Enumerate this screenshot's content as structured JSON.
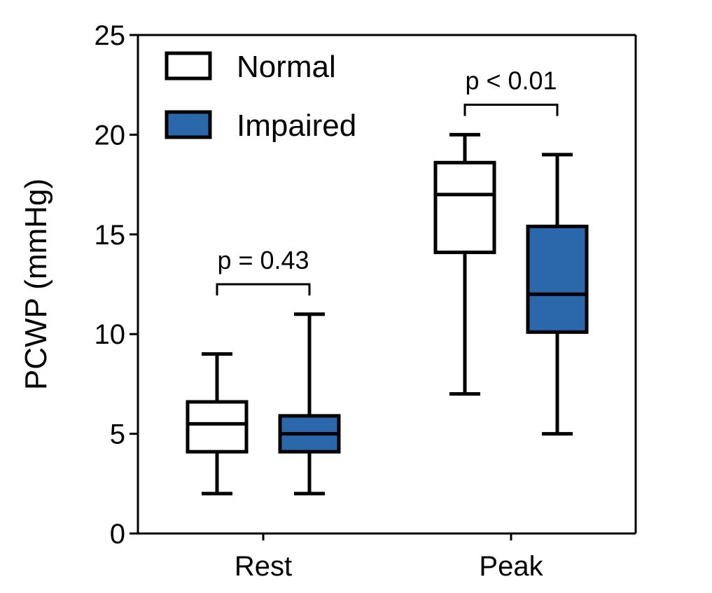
{
  "chart_data": {
    "type": "box",
    "ylabel": "PCWP (mmHg)",
    "xlabel": "",
    "ylim": [
      0,
      25
    ],
    "yticks": [
      0,
      5,
      10,
      15,
      20,
      25
    ],
    "categories": [
      "Rest",
      "Peak"
    ],
    "legend": {
      "placement": "top-left",
      "entries": [
        {
          "name": "Normal",
          "color": "#ffffff"
        },
        {
          "name": "Impaired",
          "color": "#2a67ab"
        }
      ]
    },
    "series": [
      {
        "name": "Normal",
        "color": "#ffffff",
        "boxes": [
          {
            "category": "Rest",
            "min": 2,
            "q1": 4.1,
            "median": 5.5,
            "q3": 6.6,
            "max": 9
          },
          {
            "category": "Peak",
            "min": 7,
            "q1": 14.1,
            "median": 17,
            "q3": 18.6,
            "max": 20
          }
        ]
      },
      {
        "name": "Impaired",
        "color": "#2a67ab",
        "boxes": [
          {
            "category": "Rest",
            "min": 2,
            "q1": 4.1,
            "median": 5,
            "q3": 5.9,
            "max": 11
          },
          {
            "category": "Peak",
            "min": 5,
            "q1": 10.1,
            "median": 12,
            "q3": 15.4,
            "max": 19
          }
        ]
      }
    ],
    "annotations": [
      {
        "category": "Rest",
        "text": "p = 0.43",
        "bracket_y": 12.5
      },
      {
        "category": "Peak",
        "text": "p < 0.01",
        "bracket_y": 21.5
      }
    ]
  }
}
